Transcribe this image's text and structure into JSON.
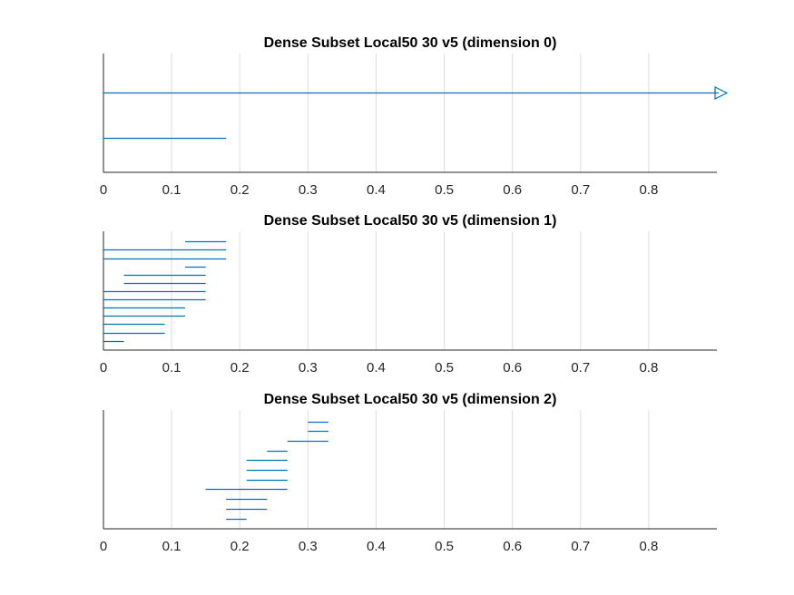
{
  "chart_data": [
    {
      "type": "barcode",
      "title": "Dense Subset Local50 30 v5 (dimension 0)",
      "xticks": [
        0,
        0.1,
        0.2,
        0.3,
        0.4,
        0.5,
        0.6,
        0.7,
        0.8
      ],
      "xtick_labels": [
        "0",
        "0.1",
        "0.2",
        "0.3",
        "0.4",
        "0.5",
        "0.6",
        "0.7",
        "0.8"
      ],
      "xlim": [
        0,
        0.9
      ],
      "grid": true,
      "color": "#0072BD",
      "intervals": [
        {
          "birth": 0,
          "death": null
        },
        {
          "birth": 0,
          "death": 0.18
        }
      ]
    },
    {
      "type": "barcode",
      "title": "Dense Subset Local50 30 v5 (dimension 1)",
      "xticks": [
        0,
        0.1,
        0.2,
        0.3,
        0.4,
        0.5,
        0.6,
        0.7,
        0.8
      ],
      "xtick_labels": [
        "0",
        "0.1",
        "0.2",
        "0.3",
        "0.4",
        "0.5",
        "0.6",
        "0.7",
        "0.8"
      ],
      "xlim": [
        0,
        0.9
      ],
      "grid": true,
      "color": "#0072BD",
      "intervals": [
        {
          "birth": 0.12,
          "death": 0.18
        },
        {
          "birth": 0,
          "death": 0.18
        },
        {
          "birth": 0,
          "death": 0.18
        },
        {
          "birth": 0.12,
          "death": 0.15
        },
        {
          "birth": 0.03,
          "death": 0.15
        },
        {
          "birth": 0.03,
          "death": 0.15
        },
        {
          "birth": 0,
          "death": 0.15
        },
        {
          "birth": 0,
          "death": 0.15
        },
        {
          "birth": 0,
          "death": 0.12
        },
        {
          "birth": 0,
          "death": 0.12
        },
        {
          "birth": 0,
          "death": 0.09
        },
        {
          "birth": 0,
          "death": 0.09
        },
        {
          "birth": 0,
          "death": 0.03
        }
      ]
    },
    {
      "type": "barcode",
      "title": "Dense Subset Local50 30 v5 (dimension 2)",
      "xticks": [
        0,
        0.1,
        0.2,
        0.3,
        0.4,
        0.5,
        0.6,
        0.7,
        0.8
      ],
      "xtick_labels": [
        "0",
        "0.1",
        "0.2",
        "0.3",
        "0.4",
        "0.5",
        "0.6",
        "0.7",
        "0.8"
      ],
      "xlim": [
        0,
        0.9
      ],
      "grid": true,
      "color": "#0072BD",
      "intervals": [
        {
          "birth": 0.3,
          "death": 0.33
        },
        {
          "birth": 0.3,
          "death": 0.33
        },
        {
          "birth": 0.27,
          "death": 0.33
        },
        {
          "birth": 0.24,
          "death": 0.27
        },
        {
          "birth": 0.21,
          "death": 0.27
        },
        {
          "birth": 0.21,
          "death": 0.27
        },
        {
          "birth": 0.21,
          "death": 0.27
        },
        {
          "birth": 0.15,
          "death": 0.27
        },
        {
          "birth": 0.18,
          "death": 0.24
        },
        {
          "birth": 0.18,
          "death": 0.24
        },
        {
          "birth": 0.18,
          "death": 0.21
        }
      ]
    }
  ]
}
